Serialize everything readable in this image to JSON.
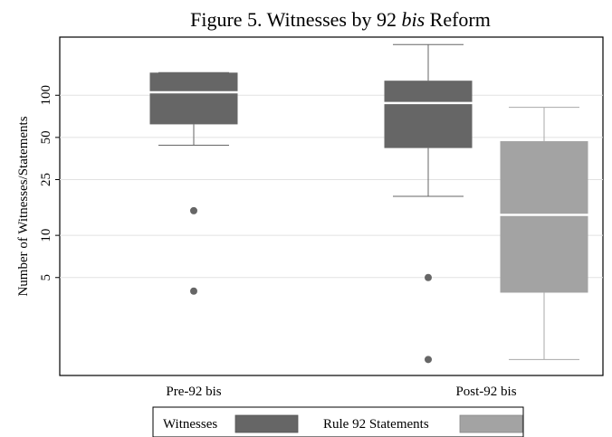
{
  "chart_data": {
    "type": "box",
    "title": {
      "prefix": "Figure 5. Witnesses by 92 ",
      "emphasis": "bis",
      "suffix": " Reform"
    },
    "ylabel": "Number of Witnesses/Statements",
    "xlabel": "",
    "y_scale": "log",
    "ylim": [
      1,
      260
    ],
    "y_ticks": [
      5,
      10,
      25,
      50,
      100
    ],
    "y_tick_labels": [
      "5",
      "10",
      "25",
      "50",
      "100"
    ],
    "gridlines": true,
    "categories": [
      "Pre-92 bis",
      "Post-92 bis"
    ],
    "series": [
      {
        "name": "Witnesses",
        "color": "#666666",
        "boxes": [
          {
            "category": "Pre-92 bis",
            "q1": 62,
            "median": 105,
            "q3": 145,
            "whisker_low": 44,
            "whisker_high": 145,
            "outliers": [
              15,
              4
            ]
          },
          {
            "category": "Post-92 bis",
            "q1": 42,
            "median": 88,
            "q3": 127,
            "whisker_low": 19,
            "whisker_high": 230,
            "outliers": [
              5,
              1.3
            ]
          }
        ]
      },
      {
        "name": "Rule 92 Statements",
        "color": "#a3a3a3",
        "boxes": [
          {
            "category": "Post-92 bis",
            "q1": 3.9,
            "median": 14,
            "q3": 47,
            "whisker_low": 1.3,
            "whisker_high": 82,
            "outliers": []
          }
        ]
      }
    ],
    "legend": {
      "position": "bottom",
      "items": [
        "Witnesses",
        "Rule 92 Statements"
      ]
    }
  }
}
